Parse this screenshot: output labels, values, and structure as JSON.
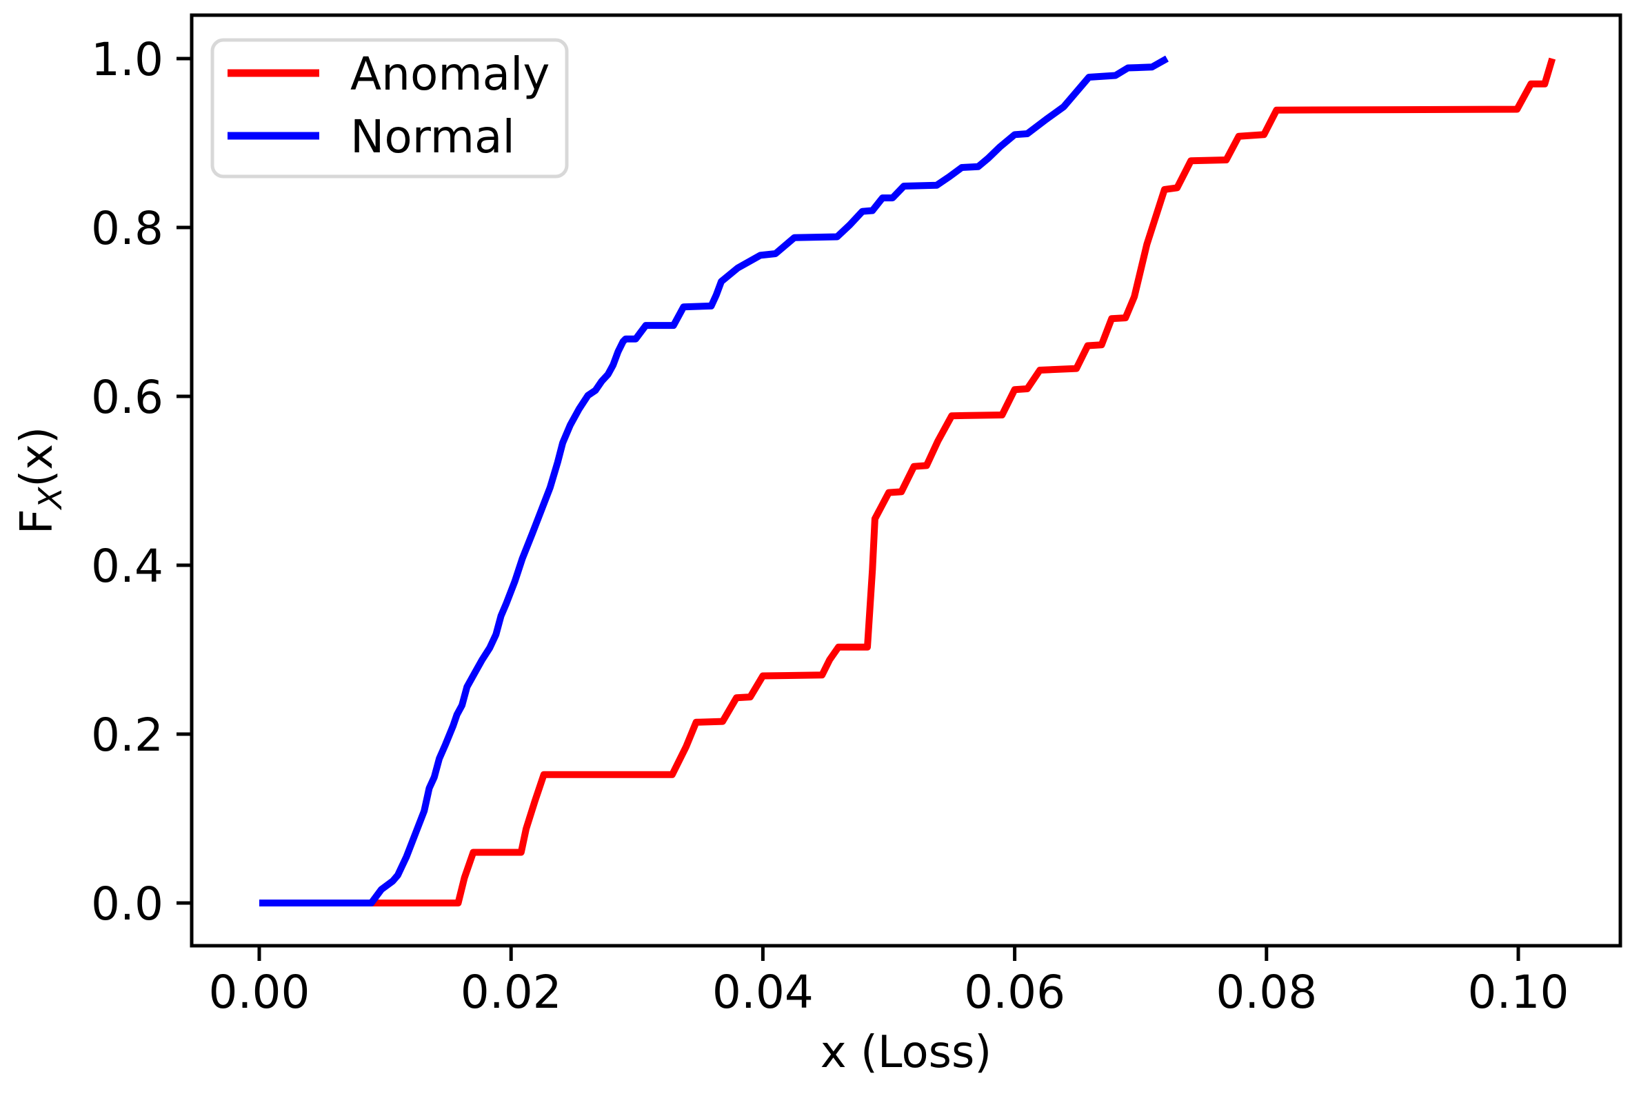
{
  "chart_data": {
    "type": "line",
    "subtype": "empirical-cdf",
    "title": "",
    "xlabel": "x (Loss)",
    "ylabel": "F_X(x)",
    "ylabel_parts": {
      "base": "F",
      "subscript": "X",
      "suffix": "(x)"
    },
    "xlim": [
      -0.0054,
      0.1081
    ],
    "ylim": [
      -0.05,
      1.05
    ],
    "grid": false,
    "legend_position": "upper left",
    "x_ticks": {
      "values": [
        0.0,
        0.02,
        0.04,
        0.06,
        0.08,
        0.1
      ],
      "labels": [
        "0.00",
        "0.02",
        "0.04",
        "0.06",
        "0.08",
        "0.10"
      ]
    },
    "y_ticks": {
      "values": [
        0.0,
        0.2,
        0.4,
        0.6,
        0.8,
        1.0
      ],
      "labels": [
        "0.0",
        "0.2",
        "0.4",
        "0.6",
        "0.8",
        "1.0"
      ]
    },
    "series": [
      {
        "name": "Anomaly",
        "color": "#ff0000",
        "points": [
          [
            0.0,
            0.0
          ],
          [
            0.0158,
            0.0
          ],
          [
            0.0163,
            0.03
          ],
          [
            0.017,
            0.06
          ],
          [
            0.0208,
            0.06
          ],
          [
            0.0212,
            0.088
          ],
          [
            0.0219,
            0.121
          ],
          [
            0.0226,
            0.152
          ],
          [
            0.0328,
            0.152
          ],
          [
            0.0339,
            0.185
          ],
          [
            0.0347,
            0.214
          ],
          [
            0.0368,
            0.215
          ],
          [
            0.0379,
            0.243
          ],
          [
            0.039,
            0.244
          ],
          [
            0.04,
            0.269
          ],
          [
            0.0447,
            0.27
          ],
          [
            0.0453,
            0.288
          ],
          [
            0.046,
            0.303
          ],
          [
            0.0483,
            0.303
          ],
          [
            0.0487,
            0.395
          ],
          [
            0.0489,
            0.455
          ],
          [
            0.05,
            0.486
          ],
          [
            0.051,
            0.487
          ],
          [
            0.052,
            0.517
          ],
          [
            0.053,
            0.518
          ],
          [
            0.0539,
            0.547
          ],
          [
            0.055,
            0.577
          ],
          [
            0.059,
            0.578
          ],
          [
            0.06,
            0.608
          ],
          [
            0.061,
            0.609
          ],
          [
            0.062,
            0.631
          ],
          [
            0.0649,
            0.633
          ],
          [
            0.0658,
            0.66
          ],
          [
            0.0669,
            0.661
          ],
          [
            0.0677,
            0.692
          ],
          [
            0.0688,
            0.693
          ],
          [
            0.0695,
            0.718
          ],
          [
            0.0705,
            0.78
          ],
          [
            0.0719,
            0.845
          ],
          [
            0.0729,
            0.847
          ],
          [
            0.074,
            0.879
          ],
          [
            0.0768,
            0.88
          ],
          [
            0.0778,
            0.908
          ],
          [
            0.0798,
            0.91
          ],
          [
            0.0808,
            0.939
          ],
          [
            0.0999,
            0.94
          ],
          [
            0.101,
            0.97
          ],
          [
            0.1021,
            0.97
          ],
          [
            0.1027,
            1.0
          ]
        ]
      },
      {
        "name": "Normal",
        "color": "#0000ff",
        "points": [
          [
            0.0,
            0.0
          ],
          [
            0.0089,
            0.0
          ],
          [
            0.0097,
            0.016
          ],
          [
            0.0106,
            0.026
          ],
          [
            0.011,
            0.033
          ],
          [
            0.0117,
            0.055
          ],
          [
            0.0124,
            0.082
          ],
          [
            0.0131,
            0.109
          ],
          [
            0.0135,
            0.136
          ],
          [
            0.0139,
            0.149
          ],
          [
            0.0143,
            0.171
          ],
          [
            0.0148,
            0.188
          ],
          [
            0.0154,
            0.21
          ],
          [
            0.0157,
            0.223
          ],
          [
            0.0161,
            0.234
          ],
          [
            0.0165,
            0.256
          ],
          [
            0.0171,
            0.272
          ],
          [
            0.0177,
            0.288
          ],
          [
            0.0183,
            0.302
          ],
          [
            0.0188,
            0.318
          ],
          [
            0.0192,
            0.34
          ],
          [
            0.0196,
            0.354
          ],
          [
            0.0203,
            0.381
          ],
          [
            0.0209,
            0.408
          ],
          [
            0.0217,
            0.438
          ],
          [
            0.0224,
            0.465
          ],
          [
            0.0231,
            0.492
          ],
          [
            0.0237,
            0.522
          ],
          [
            0.0241,
            0.545
          ],
          [
            0.0247,
            0.566
          ],
          [
            0.0254,
            0.585
          ],
          [
            0.0261,
            0.601
          ],
          [
            0.0267,
            0.607
          ],
          [
            0.0272,
            0.618
          ],
          [
            0.0277,
            0.626
          ],
          [
            0.0281,
            0.637
          ],
          [
            0.0285,
            0.653
          ],
          [
            0.0289,
            0.665
          ],
          [
            0.0291,
            0.668
          ],
          [
            0.0299,
            0.668
          ],
          [
            0.0303,
            0.676
          ],
          [
            0.0307,
            0.684
          ],
          [
            0.0329,
            0.684
          ],
          [
            0.0337,
            0.706
          ],
          [
            0.0359,
            0.707
          ],
          [
            0.0363,
            0.72
          ],
          [
            0.0367,
            0.736
          ],
          [
            0.038,
            0.752
          ],
          [
            0.0398,
            0.767
          ],
          [
            0.041,
            0.769
          ],
          [
            0.0425,
            0.788
          ],
          [
            0.0459,
            0.789
          ],
          [
            0.0469,
            0.803
          ],
          [
            0.0479,
            0.819
          ],
          [
            0.0487,
            0.82
          ],
          [
            0.0495,
            0.835
          ],
          [
            0.0503,
            0.835
          ],
          [
            0.0512,
            0.849
          ],
          [
            0.0538,
            0.85
          ],
          [
            0.0548,
            0.86
          ],
          [
            0.0558,
            0.871
          ],
          [
            0.0571,
            0.872
          ],
          [
            0.0579,
            0.882
          ],
          [
            0.0588,
            0.895
          ],
          [
            0.06,
            0.91
          ],
          [
            0.061,
            0.911
          ],
          [
            0.0625,
            0.928
          ],
          [
            0.0639,
            0.943
          ],
          [
            0.0659,
            0.978
          ],
          [
            0.068,
            0.98
          ],
          [
            0.069,
            0.989
          ],
          [
            0.0709,
            0.99
          ],
          [
            0.0721,
            1.0
          ]
        ]
      }
    ],
    "legend": {
      "entries": [
        {
          "label": "Anomaly",
          "color": "#ff0000"
        },
        {
          "label": "Normal",
          "color": "#0000ff"
        }
      ]
    }
  },
  "style_colors": {
    "axes": "#000000",
    "background": "#ffffff",
    "legend_border": "#d8d8d8"
  }
}
